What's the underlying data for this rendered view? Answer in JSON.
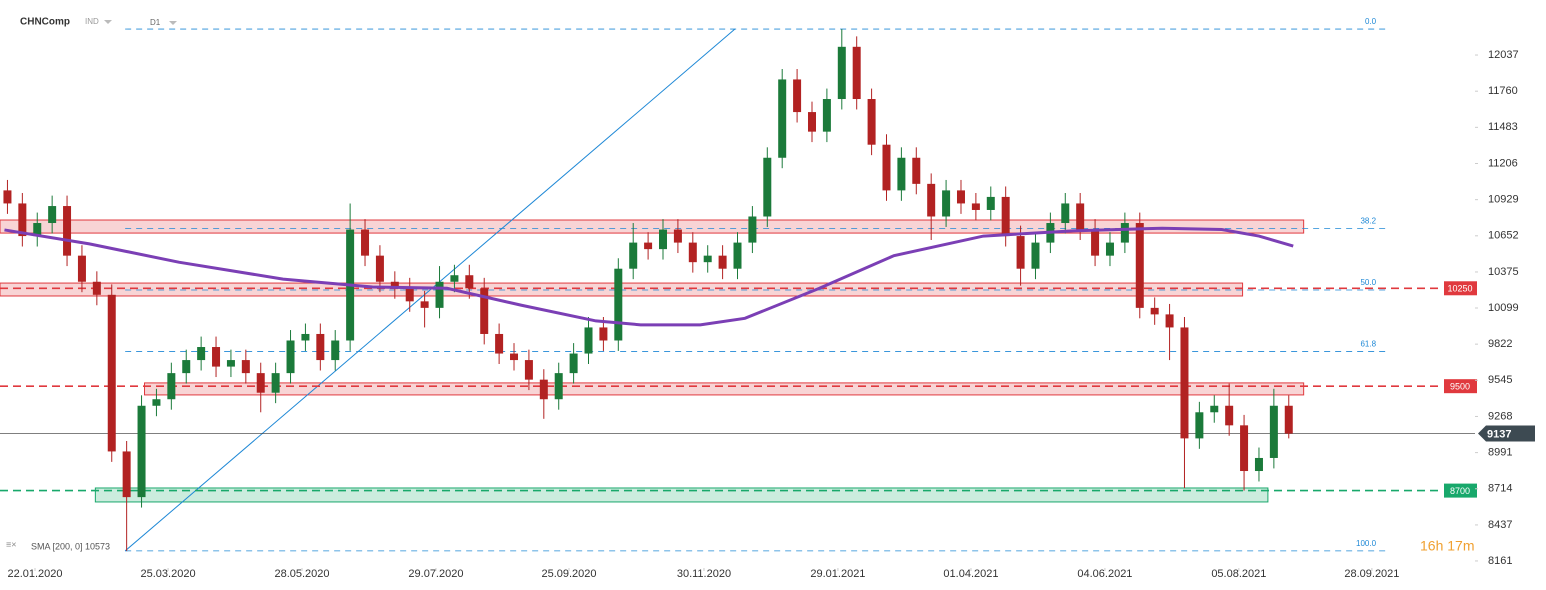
{
  "header": {
    "symbol": "CHNComp",
    "kind": "IND",
    "interval": "D1"
  },
  "timer": "16h 17m",
  "chart_data": {
    "type": "candlestick",
    "xlim": [
      0,
      99
    ],
    "ylim": [
      8107,
      12382
    ],
    "yticks": [
      8161,
      8437,
      8714,
      8991,
      9268,
      9545,
      9822,
      10099,
      10375,
      10652,
      10929,
      11206,
      11483,
      11760,
      12037
    ],
    "xticks": [
      {
        "value": 2.35,
        "label": "22.01.2020"
      },
      {
        "value": 11.28,
        "label": "25.03.2020"
      },
      {
        "value": 20.27,
        "label": "28.05.2020"
      },
      {
        "value": 29.26,
        "label": "29.07.2020"
      },
      {
        "value": 38.19,
        "label": "25.09.2020"
      },
      {
        "value": 47.25,
        "label": "30.11.2020"
      },
      {
        "value": 56.24,
        "label": "29.01.2021"
      },
      {
        "value": 65.17,
        "label": "01.04.2021"
      },
      {
        "value": 74.16,
        "label": "04.06.2021"
      },
      {
        "value": 83.15,
        "label": "05.08.2021"
      },
      {
        "value": 92.08,
        "label": "28.09.2021"
      }
    ],
    "up_color": "#1b7a3a",
    "down_color": "#b22222",
    "open": [
      11000,
      10900,
      10650,
      10750,
      10880,
      10500,
      10300,
      10200,
      9000,
      8650,
      9350,
      9400,
      9600,
      9700,
      9800,
      9650,
      9700,
      9600,
      9450,
      9600,
      9850,
      9900,
      9700,
      9850,
      10700,
      10500,
      10300,
      10250,
      10150,
      10100,
      10300,
      10350,
      10250,
      9900,
      9750,
      9700,
      9550,
      9400,
      9600,
      9750,
      9950,
      9850,
      10400,
      10600,
      10550,
      10700,
      10600,
      10450,
      10500,
      10400,
      10600,
      10800,
      11250,
      11850,
      11600,
      11450,
      11700,
      12100,
      11700,
      11350,
      11000,
      11250,
      11050,
      10800,
      11000,
      10900,
      10850,
      10950,
      10650,
      10400,
      10600,
      10750,
      10900,
      10700,
      10500,
      10600,
      10750,
      10100,
      10050,
      9950,
      9100,
      9300,
      9350,
      9200,
      8850,
      8950,
      9350
    ],
    "high": [
      11080,
      10980,
      10830,
      10960,
      10960,
      10580,
      10380,
      10280,
      9080,
      9430,
      9480,
      9680,
      9780,
      9880,
      9880,
      9780,
      9780,
      9680,
      9680,
      9930,
      9980,
      9980,
      9930,
      10900,
      10780,
      10580,
      10380,
      10330,
      10230,
      10420,
      10430,
      10430,
      10330,
      9980,
      9830,
      9780,
      9630,
      9680,
      9830,
      10030,
      10030,
      10480,
      10750,
      10680,
      10780,
      10780,
      10680,
      10580,
      10580,
      10680,
      10880,
      11330,
      11930,
      11930,
      11680,
      11780,
      12236,
      12180,
      11780,
      11430,
      11330,
      11330,
      11130,
      11080,
      11080,
      10980,
      11030,
      11030,
      10730,
      10680,
      10830,
      10980,
      10980,
      10780,
      10680,
      10830,
      10830,
      10180,
      10130,
      10030,
      9380,
      9430,
      9520,
      9280,
      9030,
      9480,
      9430
    ],
    "low": [
      10820,
      10570,
      10570,
      10670,
      10420,
      10220,
      10120,
      8920,
      8238,
      8570,
      9270,
      9320,
      9520,
      9620,
      9570,
      9570,
      9520,
      9300,
      9370,
      9520,
      9770,
      9620,
      9620,
      9770,
      10420,
      10220,
      10170,
      10070,
      9950,
      10020,
      10220,
      10170,
      9820,
      9670,
      9620,
      9470,
      9250,
      9320,
      9520,
      9670,
      9770,
      9770,
      10320,
      10470,
      10470,
      10520,
      10370,
      10370,
      10320,
      10320,
      10520,
      10720,
      11170,
      11520,
      11370,
      11370,
      11620,
      11620,
      11270,
      10920,
      10920,
      10970,
      10620,
      10720,
      10820,
      10770,
      10770,
      10570,
      10270,
      10320,
      10520,
      10670,
      10620,
      10420,
      10420,
      10520,
      10020,
      9970,
      9700,
      8720,
      9020,
      9220,
      9120,
      8700,
      8770,
      8870,
      9100
    ],
    "close": [
      10900,
      10650,
      10750,
      10880,
      10500,
      10300,
      10200,
      9000,
      8650,
      9350,
      9400,
      9600,
      9700,
      9800,
      9650,
      9700,
      9600,
      9450,
      9600,
      9850,
      9900,
      9700,
      9850,
      10700,
      10500,
      10300,
      10250,
      10150,
      10100,
      10300,
      10350,
      10250,
      9900,
      9750,
      9700,
      9550,
      9400,
      9600,
      9750,
      9950,
      9850,
      10400,
      10600,
      10550,
      10700,
      10600,
      10450,
      10500,
      10400,
      10600,
      10800,
      11250,
      11850,
      11600,
      11450,
      11700,
      12100,
      11700,
      11350,
      11000,
      11250,
      11050,
      10800,
      11000,
      10900,
      10850,
      10950,
      10650,
      10400,
      10600,
      10750,
      10900,
      10700,
      10500,
      10600,
      10750,
      10100,
      10050,
      9950,
      9100,
      9300,
      9350,
      9200,
      8850,
      8950,
      9350,
      9137
    ],
    "sma": {
      "name": "SMA [200, 0] 10573",
      "color": "#7b3fb5",
      "x": [
        0.3,
        6,
        12,
        19,
        25,
        30,
        35,
        40,
        43,
        47,
        50,
        55,
        60,
        66,
        72,
        78,
        82,
        84.5,
        86.8
      ],
      "values": [
        10697,
        10590,
        10450,
        10320,
        10260,
        10250,
        10120,
        10000,
        9970,
        9970,
        10020,
        10250,
        10500,
        10650,
        10690,
        10710,
        10700,
        10650,
        10573
      ]
    },
    "fib": {
      "color": "#1e88d6",
      "x": [
        8.4,
        93.3
      ],
      "levels": [
        {
          "value": 12236,
          "label": "0.0"
        },
        {
          "value": 10709,
          "label": "38.2"
        },
        {
          "value": 10237,
          "label": "50.0"
        },
        {
          "value": 9765,
          "label": "61.8"
        },
        {
          "value": 8238,
          "label": "100.0"
        }
      ]
    },
    "trendline": {
      "color": "#1e88d6",
      "x": [
        8.4,
        49.33
      ],
      "values": [
        8238,
        12236
      ]
    },
    "zones": [
      {
        "x": [
          0,
          87.5
        ],
        "from": 10673,
        "to": 10773,
        "color": "#e0393e"
      },
      {
        "x": [
          0,
          83.4
        ],
        "from": 10191,
        "to": 10290,
        "color": "#e0393e"
      },
      {
        "x": [
          9.7,
          87.5
        ],
        "from": 9433,
        "to": 9525,
        "color": "#e0393e"
      },
      {
        "x": [
          6.4,
          85.1
        ],
        "from": 8613,
        "to": 8720,
        "color": "#18a86b"
      }
    ],
    "levels": [
      {
        "value": 10250,
        "color": "#e0393e"
      },
      {
        "value": 9500,
        "color": "#e0393e"
      },
      {
        "value": 8700,
        "color": "#18a86b"
      }
    ],
    "last": 9137
  }
}
